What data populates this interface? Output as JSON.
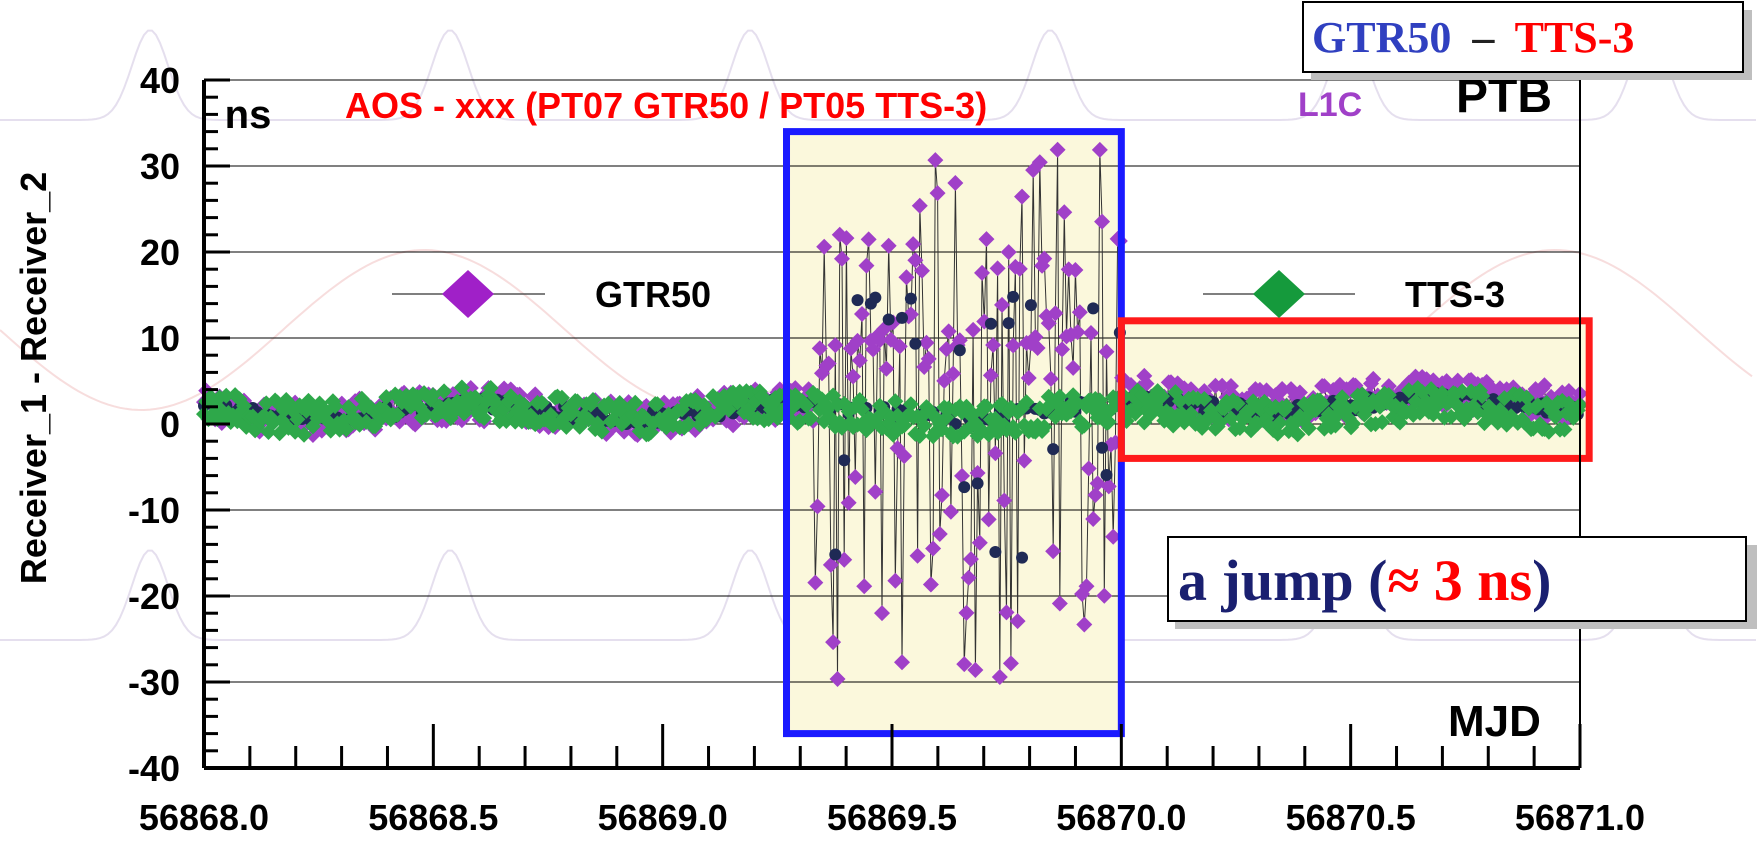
{
  "chart_data": {
    "type": "scatter",
    "title": "AOS - xxx (PT07 GTR50 / PT05 TTS-3)",
    "code_label": "L1C",
    "lab_label": "PTB",
    "unit_label": "ns",
    "xlabel": "MJD",
    "ylabel": "Receiver_1 - Receiver_2",
    "xlim": [
      56868.0,
      56871.0
    ],
    "ylim": [
      -40,
      40
    ],
    "x_ticks": [
      "56868.0",
      "56868.5",
      "56869.0",
      "56869.5",
      "56870.0",
      "56870.5",
      "56871.0"
    ],
    "y_ticks": [
      "40",
      "30",
      "20",
      "10",
      "0",
      "-10",
      "-20",
      "-30",
      "-40"
    ],
    "grid": "horizontal",
    "legend": [
      "GTR50",
      "TTS-3"
    ],
    "series": [
      {
        "name": "GTR50",
        "color": "#a040c8",
        "marker": "diamond",
        "description_range": "scatter around 0 to 5 ns before 56869.27 and after 56870.0; large excursions between -31 and +32 ns from 56869.27 to 56870.0"
      },
      {
        "name": "TTS-3",
        "color": "#2ea84a",
        "marker": "diamond"
      }
    ],
    "highlight_regions": [
      {
        "x_from": 56869.27,
        "x_to": 56870.0,
        "y_from": -36,
        "y_to": 34,
        "border": "#1a1aff"
      },
      {
        "x_from": 56870.0,
        "x_to": 56871.02,
        "y_from": -4,
        "y_to": 12,
        "border": "#ff1a1a"
      }
    ]
  },
  "header_box": {
    "part1": "GTR50",
    "dash": "–",
    "part2": "TTS-3"
  },
  "annotation": {
    "pre": "a jump (",
    "approx": "≈ 3 ns",
    "post": ")"
  },
  "colors": {
    "gtr": "#a040c8",
    "tts": "#2ea84a",
    "dark": "#1f2a55",
    "title_red": "#ff0000",
    "blue_box": "#1a1aff"
  }
}
